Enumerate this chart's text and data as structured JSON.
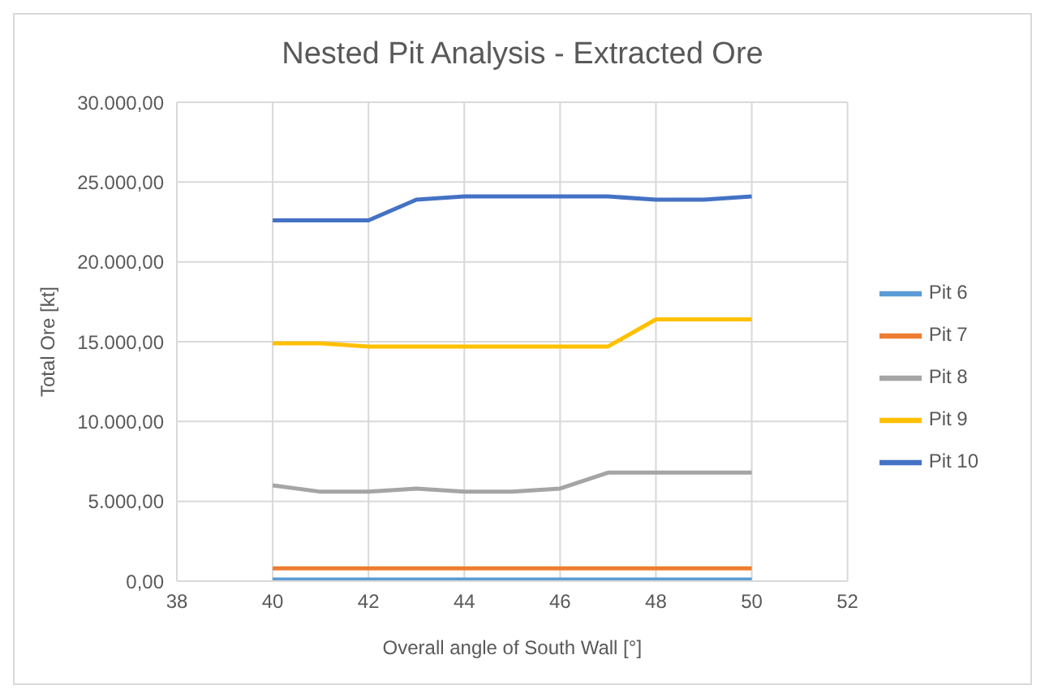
{
  "chart_data": {
    "type": "line",
    "title": "Nested Pit Analysis - Extracted Ore",
    "xlabel": "Overall angle of South Wall [°]",
    "ylabel": "Total Ore [kt]",
    "x": [
      40,
      41,
      42,
      43,
      44,
      45,
      46,
      47,
      48,
      49,
      50
    ],
    "series": [
      {
        "name": "Pit 6",
        "color": "#5b9bd5",
        "values": [
          100,
          100,
          100,
          100,
          100,
          100,
          100,
          100,
          100,
          100,
          100
        ]
      },
      {
        "name": "Pit 7",
        "color": "#ed7d31",
        "values": [
          800,
          800,
          800,
          800,
          800,
          800,
          800,
          800,
          800,
          800,
          800
        ]
      },
      {
        "name": "Pit 8",
        "color": "#a5a5a5",
        "values": [
          6000,
          5600,
          5600,
          5800,
          5600,
          5600,
          5800,
          6800,
          6800,
          6800,
          6800
        ]
      },
      {
        "name": "Pit 9",
        "color": "#ffc000",
        "values": [
          14900,
          14900,
          14700,
          14700,
          14700,
          14700,
          14700,
          14700,
          16400,
          16400,
          16400
        ]
      },
      {
        "name": "Pit 10",
        "color": "#4472c4",
        "values": [
          22600,
          22600,
          22600,
          23900,
          24100,
          24100,
          24100,
          24100,
          23900,
          23900,
          24100
        ]
      }
    ],
    "xlim": [
      38,
      52
    ],
    "xticks": [
      38,
      40,
      42,
      44,
      46,
      48,
      50,
      52
    ],
    "ylim": [
      0,
      30000
    ],
    "yticks": [
      {
        "value": 0,
        "label": "0,00"
      },
      {
        "value": 5000,
        "label": "5.000,00"
      },
      {
        "value": 10000,
        "label": "10.000,00"
      },
      {
        "value": 15000,
        "label": "15.000,00"
      },
      {
        "value": 20000,
        "label": "20.000,00"
      },
      {
        "value": 25000,
        "label": "25.000,00"
      },
      {
        "value": 30000,
        "label": "30.000,00"
      }
    ],
    "grid": true,
    "legend": "right",
    "marker": "none",
    "line_style": "solid"
  }
}
